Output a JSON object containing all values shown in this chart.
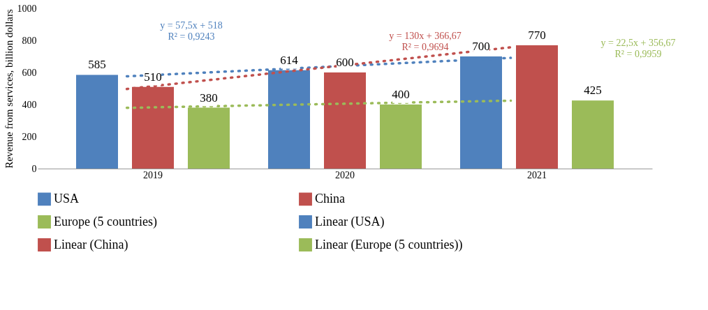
{
  "chart_data": {
    "type": "bar",
    "ylabel": "Revenue from services, billion dollars",
    "categories": [
      "2019",
      "2020",
      "2021"
    ],
    "series": [
      {
        "name": "USA",
        "color": "#4f81bd",
        "values": [
          585,
          614,
          700
        ],
        "value_labels": [
          "585",
          "614",
          "700"
        ]
      },
      {
        "name": "China",
        "color": "#c0504d",
        "values": [
          510,
          600,
          770
        ],
        "value_labels": [
          "510",
          "600",
          "770"
        ]
      },
      {
        "name": "Europe (5 countries)",
        "color": "#9bbb59",
        "values": [
          380,
          400,
          425
        ],
        "value_labels": [
          "380",
          "400",
          "425"
        ]
      },
      {
        "name": "Linear (USA)",
        "type": "line",
        "color": "#4f81bd",
        "line_style": "dotted",
        "values": [
          576,
          633,
          691
        ]
      },
      {
        "name": "Linear (China)",
        "type": "line",
        "color": "#c0504d",
        "line_style": "dotted",
        "values": [
          497,
          627,
          757
        ]
      },
      {
        "name": "Linear (Europe (5 countries))",
        "type": "line",
        "color": "#9bbb59",
        "line_style": "dotted",
        "values": [
          379,
          402,
          424
        ]
      }
    ],
    "ylim": [
      0,
      1000
    ],
    "yticks": [
      0,
      200,
      400,
      600,
      800,
      {
        "value": 1000,
        "label": "1000"
      }
    ],
    "grid": false,
    "legend": "bottom",
    "annotations": [
      "y = 57,5x + 518\nR² = 0,9243",
      "y = 130x + 366,67\nR² = 0,9694",
      "y = 22,5x + 356,67\nR² = 0,9959"
    ]
  }
}
